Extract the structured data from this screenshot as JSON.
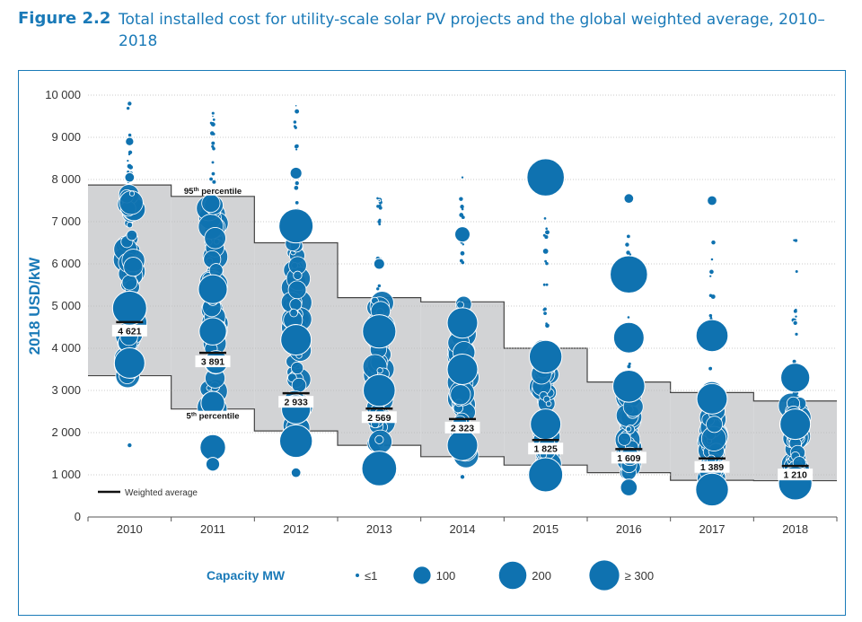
{
  "figure": {
    "number": "Figure 2.2",
    "title": "Total installed cost for utility-scale solar PV projects and the global weighted average, 2010–2018"
  },
  "colors": {
    "accent": "#1a7ab8",
    "bubble": "#0f72b0",
    "band": "#d2d3d5"
  },
  "chart_data": {
    "type": "scatter",
    "ylabel": "2018 USD/kW",
    "ylim": [
      0,
      10000
    ],
    "yticks": [
      0,
      1000,
      2000,
      3000,
      4000,
      5000,
      6000,
      7000,
      8000,
      9000,
      10000
    ],
    "ytick_labels": [
      "0",
      "1 000",
      "2 000",
      "3 000",
      "4 000",
      "5 000",
      "6 000",
      "7 000",
      "8 000",
      "9 000",
      "10 000"
    ],
    "categories": [
      "2010",
      "2011",
      "2012",
      "2013",
      "2014",
      "2015",
      "2016",
      "2017",
      "2018"
    ],
    "p95": [
      7870,
      7600,
      6500,
      5200,
      5100,
      4000,
      3200,
      2950,
      2750
    ],
    "p5": [
      3350,
      2560,
      2040,
      1700,
      1430,
      1230,
      1050,
      870,
      860
    ],
    "weighted_average": [
      4621,
      3891,
      2933,
      2569,
      2323,
      1825,
      1609,
      1389,
      1210
    ],
    "weighted_average_labels": [
      "4 621",
      "3 891",
      "2 933",
      "2 569",
      "2 323",
      "1 825",
      "1 609",
      "1 389",
      "1 210"
    ],
    "annotations": {
      "p95_base": "95",
      "p95_sup": "th",
      "p95_rest": " percentile",
      "p5_base": "5",
      "p5_sup": "th",
      "p5_rest": " percentile"
    },
    "legend": {
      "weighted_average": "Weighted average"
    },
    "capacity_legend": {
      "title": "Capacity MW",
      "items": [
        {
          "label": "≤1",
          "mw": 1
        },
        {
          "label": "100",
          "mw": 100
        },
        {
          "label": "200",
          "mw": 200
        },
        {
          "label": "≥ 300",
          "mw": 300
        }
      ]
    },
    "notable_points": [
      {
        "year": "2010",
        "y": 9800,
        "mw": 5
      },
      {
        "year": "2010",
        "y": 8900,
        "mw": 15
      },
      {
        "year": "2010",
        "y": 8050,
        "mw": 20
      },
      {
        "year": "2010",
        "y": 4950,
        "mw": 250
      },
      {
        "year": "2010",
        "y": 3650,
        "mw": 200
      },
      {
        "year": "2010",
        "y": 1700,
        "mw": 5
      },
      {
        "year": "2011",
        "y": 9500,
        "mw": 1
      },
      {
        "year": "2011",
        "y": 5400,
        "mw": 180
      },
      {
        "year": "2011",
        "y": 4400,
        "mw": 160
      },
      {
        "year": "2011",
        "y": 2700,
        "mw": 120
      },
      {
        "year": "2011",
        "y": 1650,
        "mw": 140
      },
      {
        "year": "2011",
        "y": 1250,
        "mw": 40
      },
      {
        "year": "2012",
        "y": 9750,
        "mw": 1
      },
      {
        "year": "2012",
        "y": 8150,
        "mw": 30
      },
      {
        "year": "2012",
        "y": 6900,
        "mw": 250
      },
      {
        "year": "2012",
        "y": 4200,
        "mw": 200
      },
      {
        "year": "2012",
        "y": 2550,
        "mw": 180
      },
      {
        "year": "2012",
        "y": 1800,
        "mw": 230
      },
      {
        "year": "2012",
        "y": 1050,
        "mw": 20
      },
      {
        "year": "2013",
        "y": 7500,
        "mw": 1
      },
      {
        "year": "2013",
        "y": 6000,
        "mw": 25
      },
      {
        "year": "2013",
        "y": 4400,
        "mw": 240
      },
      {
        "year": "2013",
        "y": 3000,
        "mw": 220
      },
      {
        "year": "2013",
        "y": 1150,
        "mw": 260
      },
      {
        "year": "2014",
        "y": 8050,
        "mw": 2
      },
      {
        "year": "2014",
        "y": 6700,
        "mw": 50
      },
      {
        "year": "2014",
        "y": 4600,
        "mw": 200
      },
      {
        "year": "2014",
        "y": 3500,
        "mw": 200
      },
      {
        "year": "2014",
        "y": 1700,
        "mw": 200
      },
      {
        "year": "2014",
        "y": 950,
        "mw": 5
      },
      {
        "year": "2015",
        "y": 8050,
        "mw": 300
      },
      {
        "year": "2015",
        "y": 6300,
        "mw": 8
      },
      {
        "year": "2015",
        "y": 3800,
        "mw": 230
      },
      {
        "year": "2015",
        "y": 2200,
        "mw": 200
      },
      {
        "year": "2015",
        "y": 1000,
        "mw": 250
      },
      {
        "year": "2016",
        "y": 7550,
        "mw": 20
      },
      {
        "year": "2016",
        "y": 5750,
        "mw": 300
      },
      {
        "year": "2016",
        "y": 4250,
        "mw": 200
      },
      {
        "year": "2016",
        "y": 3100,
        "mw": 220
      },
      {
        "year": "2016",
        "y": 700,
        "mw": 60
      },
      {
        "year": "2017",
        "y": 7500,
        "mw": 20
      },
      {
        "year": "2017",
        "y": 4300,
        "mw": 220
      },
      {
        "year": "2017",
        "y": 2800,
        "mw": 200
      },
      {
        "year": "2017",
        "y": 650,
        "mw": 230
      },
      {
        "year": "2018",
        "y": 4600,
        "mw": 5
      },
      {
        "year": "2018",
        "y": 3300,
        "mw": 180
      },
      {
        "year": "2018",
        "y": 2200,
        "mw": 200
      },
      {
        "year": "2018",
        "y": 800,
        "mw": 240
      }
    ]
  }
}
